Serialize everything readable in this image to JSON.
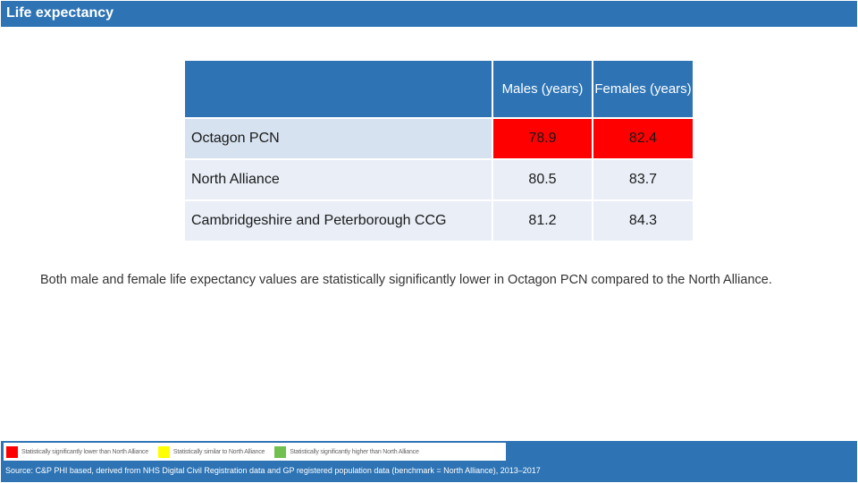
{
  "title": "Life expectancy",
  "table": {
    "columns": [
      "Males (years)",
      "Females (years)"
    ],
    "rows": [
      {
        "name": "Octagon PCN",
        "males": "78.9",
        "females": "82.4",
        "status": "lower"
      },
      {
        "name": "North Alliance",
        "males": "80.5",
        "females": "83.7",
        "status": "benchmark"
      },
      {
        "name": "Cambridgeshire and Peterborough CCG",
        "males": "81.2",
        "females": "84.3",
        "status": "none"
      }
    ]
  },
  "note": "Both male and female life expectancy values are statistically significantly lower in Octagon PCN compared to the North Alliance.",
  "legend": [
    {
      "label": "Statistically significantly lower than North Alliance",
      "color": "#ff0000"
    },
    {
      "label": "Statistically similar to North Alliance",
      "color": "#ffff00"
    },
    {
      "label": "Statistically significantly higher than North Alliance",
      "color": "#70c050"
    }
  ],
  "source": "Source: C&P PHI based, derived from NHS Digital Civil Registration data and GP registered population data (benchmark = North Alliance), 2013–2017",
  "colors": {
    "header": "#2e74b5",
    "lower": "#ff0000",
    "row_light": "#e9eef7",
    "row_mid": "#d6e2f0"
  }
}
